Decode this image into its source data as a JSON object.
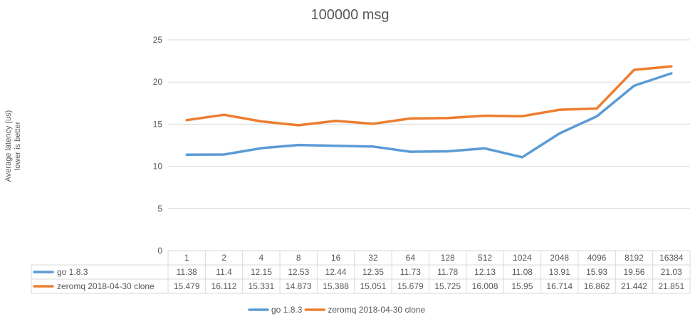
{
  "chart_data": {
    "type": "line",
    "title": "100000 msg",
    "ylabel_lines": [
      "Average latency (us)",
      "lower is better"
    ],
    "xlabel": "",
    "ylim": [
      0,
      25
    ],
    "yticks": [
      0,
      5,
      10,
      15,
      20,
      25
    ],
    "grid": true,
    "legend_position": "bottom",
    "data_table": true,
    "categories": [
      "1",
      "2",
      "4",
      "8",
      "16",
      "32",
      "64",
      "128",
      "512",
      "1024",
      "2048",
      "4096",
      "8192",
      "16384"
    ],
    "series": [
      {
        "name": "go 1.8.3",
        "color": "#5B9BD5",
        "values": [
          11.38,
          11.4,
          12.15,
          12.53,
          12.44,
          12.35,
          11.73,
          11.78,
          12.13,
          11.08,
          13.91,
          15.93,
          19.56,
          21.03
        ]
      },
      {
        "name": "zeromq 2018-04-30 clone",
        "color": "#ED7D31",
        "values": [
          15.479,
          16.112,
          15.331,
          14.873,
          15.388,
          15.051,
          15.679,
          15.725,
          16.008,
          15.95,
          16.714,
          16.862,
          21.442,
          21.851
        ]
      }
    ]
  }
}
